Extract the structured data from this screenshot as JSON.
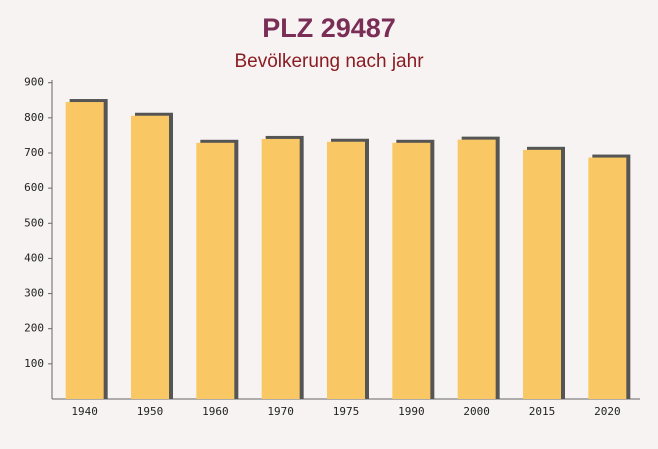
{
  "chart_data": {
    "type": "bar",
    "title": "PLZ 29487",
    "subtitle": "Bevölkerung nach jahr",
    "categories": [
      "1940",
      "1950",
      "1960",
      "1970",
      "1975",
      "1990",
      "2000",
      "2015",
      "2020"
    ],
    "values": [
      845,
      806,
      729,
      740,
      732,
      729,
      738,
      709,
      687
    ],
    "color": "#f9c864",
    "ylim": [
      0,
      900
    ],
    "yticks": [
      100,
      200,
      300,
      400,
      500,
      600,
      700,
      800,
      900
    ],
    "grid": false
  }
}
